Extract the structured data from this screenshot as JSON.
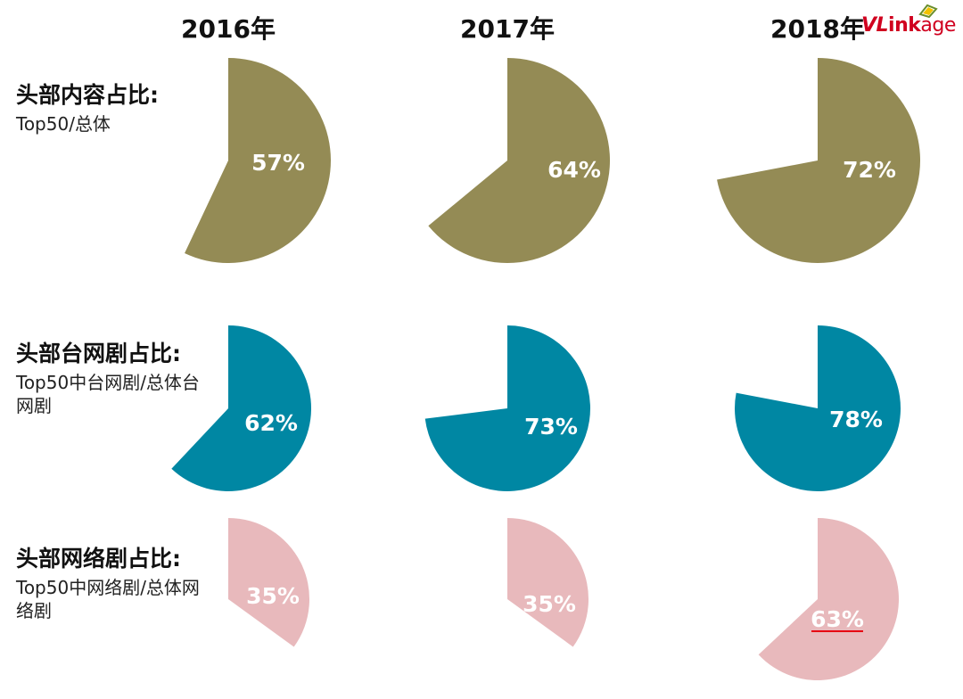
{
  "chart_data": {
    "type": "pie",
    "years": [
      "2016年",
      "2017年",
      "2018年"
    ],
    "rows": [
      {
        "title": "头部内容占比:",
        "subtitle": "Top50/总体",
        "color": "#948b55",
        "values": [
          57,
          64,
          72
        ],
        "labels": [
          "57%",
          "64%",
          "72%"
        ]
      },
      {
        "title": "头部台网剧占比:",
        "subtitle": "Top50中台网剧/总体台网剧",
        "color": "#0087a3",
        "values": [
          62,
          73,
          78
        ],
        "labels": [
          "62%",
          "73%",
          "78%"
        ]
      },
      {
        "title": "头部网络剧占比:",
        "subtitle": "Top50中网络剧/总体网络剧",
        "color": "#e8b9bc",
        "values": [
          35,
          35,
          63
        ],
        "labels": [
          "35%",
          "35%",
          "63%"
        ]
      }
    ],
    "highlight": {
      "row": 2,
      "col": 2,
      "color": "#e60012"
    }
  },
  "logo": {
    "vl": "VL",
    "ink": "ink",
    "age": "age",
    "color": "#d0001f"
  }
}
